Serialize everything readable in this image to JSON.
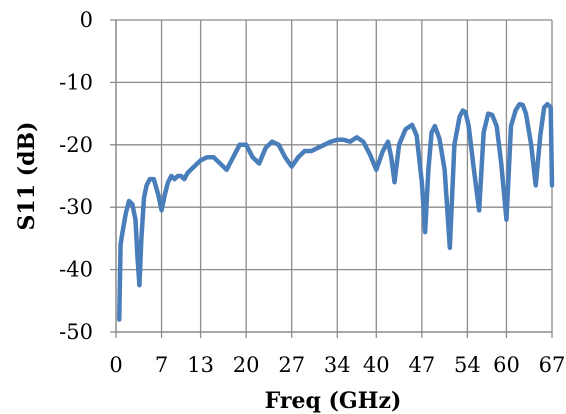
{
  "chart_data": {
    "type": "line",
    "title": "",
    "xlabel": "Freq (GHz)",
    "ylabel": "S11 (dB)",
    "xlim": [
      0,
      67
    ],
    "ylim": [
      -50,
      0
    ],
    "x_ticks": [
      0,
      7,
      13,
      20,
      27,
      34,
      40,
      47,
      54,
      60,
      67
    ],
    "y_ticks": [
      0,
      -10,
      -20,
      -30,
      -40,
      -50
    ],
    "y_tick_labels": [
      "0",
      "-10",
      "-20",
      "-30",
      "-40",
      "-50"
    ],
    "x_tick_labels": [
      "0",
      "7",
      "13",
      "20",
      "27",
      "34",
      "40",
      "47",
      "54",
      "60",
      "67"
    ],
    "grid": true,
    "legend": "none",
    "series_color": "#4a7ebb",
    "series": [
      {
        "x": [
          0.5,
          0.7,
          1.0,
          1.5,
          2.0,
          2.5,
          3.0,
          3.3,
          3.6,
          3.9,
          4.3,
          4.7,
          5.2,
          5.8,
          6.5,
          7.0,
          7.5,
          8.0,
          8.5,
          9.0,
          9.5,
          10.0,
          10.5,
          11.0,
          12.0,
          13.0,
          14.0,
          15.0,
          16.0,
          17.0,
          18.0,
          19.0,
          20.0,
          21.0,
          22.0,
          23.0,
          24.0,
          25.0,
          26.0,
          27.0,
          28.0,
          29.0,
          30.0,
          31.0,
          32.0,
          33.0,
          34.0,
          35.0,
          36.0,
          37.0,
          38.0,
          39.0,
          40.0,
          41.0,
          41.8,
          42.3,
          42.8,
          43.5,
          44.5,
          45.5,
          46.2,
          47.0,
          47.5,
          48.0,
          48.5,
          49.0,
          49.7,
          50.5,
          51.3,
          52.0,
          52.8,
          53.3,
          53.7,
          54.2,
          55.0,
          55.8,
          56.5,
          57.2,
          57.8,
          58.5,
          59.2,
          60.0,
          60.7,
          61.4,
          62.0,
          62.5,
          63.0,
          63.8,
          64.5,
          65.2,
          65.8,
          66.3,
          66.8,
          67.0
        ],
        "values": [
          -48,
          -36,
          -34,
          -31,
          -29,
          -29.5,
          -32,
          -38,
          -42.5,
          -35,
          -28.5,
          -26.5,
          -25.5,
          -25.5,
          -28,
          -30.5,
          -28,
          -26,
          -25,
          -25.5,
          -25,
          -25,
          -25.5,
          -24.5,
          -23.5,
          -22.5,
          -22,
          -22,
          -23,
          -24,
          -22,
          -20,
          -20,
          -22,
          -23,
          -20.5,
          -19.5,
          -20,
          -22,
          -23.5,
          -22,
          -21,
          -21,
          -20.5,
          -20,
          -19.5,
          -19.2,
          -19.2,
          -19.5,
          -18.8,
          -19.5,
          -21.5,
          -24,
          -21,
          -19.5,
          -22,
          -26,
          -20,
          -17.5,
          -16.8,
          -18.5,
          -26,
          -34,
          -24,
          -18,
          -17,
          -19,
          -24,
          -36.5,
          -20,
          -15.5,
          -14.5,
          -14.8,
          -17,
          -24,
          -30.5,
          -18,
          -15,
          -15.2,
          -17,
          -23,
          -32,
          -17,
          -14.5,
          -13.5,
          -13.6,
          -15,
          -20,
          -26.5,
          -18.5,
          -14,
          -13.5,
          -14,
          -26.5
        ]
      }
    ]
  }
}
